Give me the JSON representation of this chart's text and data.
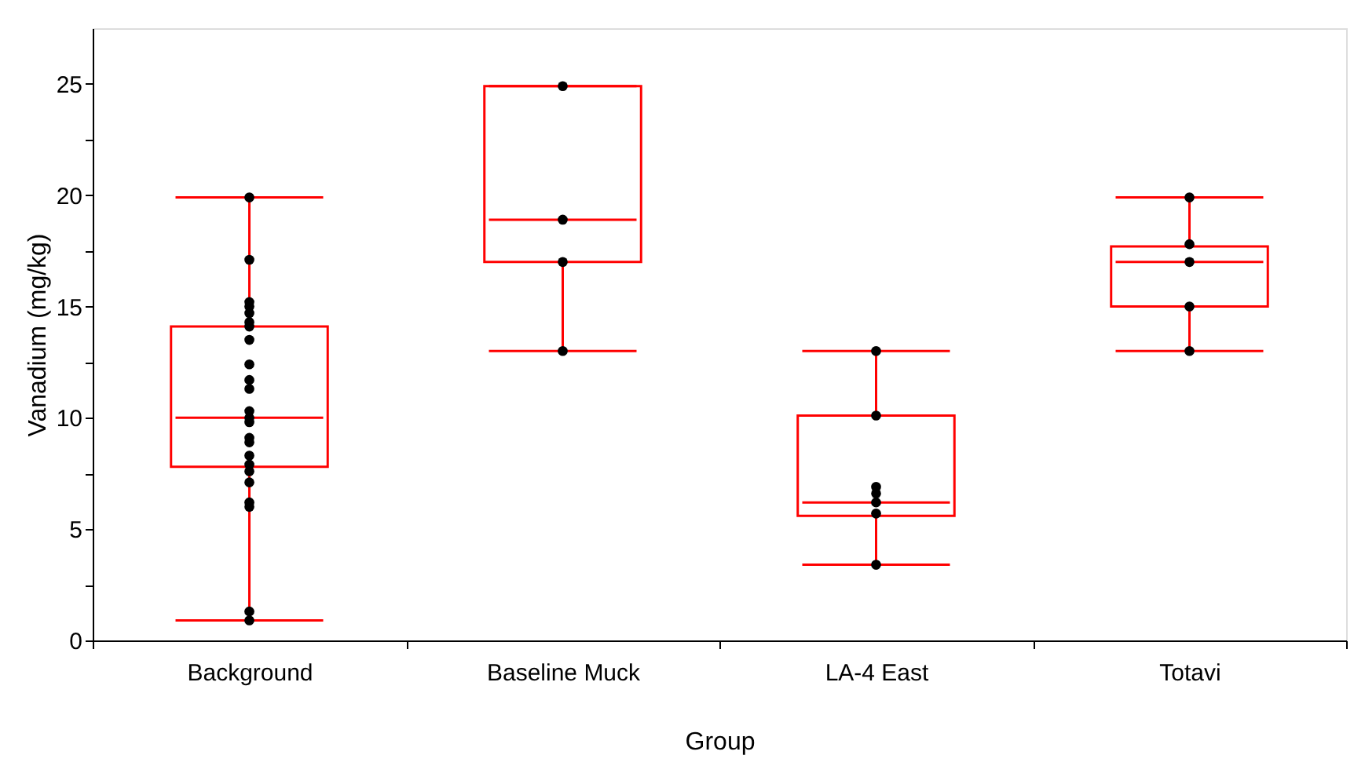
{
  "chart_data": {
    "type": "box",
    "xlabel": "Group",
    "ylabel": "Vanadium (mg/kg)",
    "categories": [
      "Background",
      "Baseline Muck",
      "LA-4 East",
      "Totavi"
    ],
    "ylim": [
      0,
      27.5
    ],
    "yticks": [
      0,
      {
        "value": 2.5,
        "label": null
      },
      5,
      {
        "value": 7.5,
        "label": null
      },
      10,
      {
        "value": 12.5,
        "label": null
      },
      15,
      {
        "value": 17.5,
        "label": null
      },
      20,
      {
        "value": 22.5,
        "label": null
      },
      25
    ],
    "color": "#ff0000",
    "boxes": [
      {
        "low": 0.9,
        "q1": 7.8,
        "median": 10,
        "q3": 14.1,
        "high": 19.9
      },
      {
        "low": 13,
        "q1": 17,
        "median": 18.9,
        "q3": 24.9,
        "high": 24.9
      },
      {
        "low": 3.4,
        "q1": 5.6,
        "median": 6.2,
        "q3": 10.1,
        "high": 13
      },
      {
        "low": 13,
        "q1": 15,
        "median": 17,
        "q3": 17.7,
        "high": 19.9
      }
    ],
    "series": [
      {
        "type": "scatter",
        "color": "#000000",
        "marker": "circle",
        "x": [
          "Background",
          "Background",
          "Background",
          "Background",
          "Background",
          "Background",
          "Background",
          "Background",
          "Background",
          "Background",
          "Background",
          "Background",
          "Background",
          "Background",
          "Background",
          "Background",
          "Background",
          "Background",
          "Background",
          "Background",
          "Background",
          "Background",
          "Background",
          "Background",
          "Baseline Muck",
          "Baseline Muck",
          "Baseline Muck",
          "Baseline Muck",
          "LA-4 East",
          "LA-4 East",
          "LA-4 East",
          "LA-4 East",
          "LA-4 East",
          "LA-4 East",
          "LA-4 East",
          "Totavi",
          "Totavi",
          "Totavi",
          "Totavi",
          "Totavi"
        ],
        "values": [
          19.9,
          17.1,
          15.2,
          15,
          14.7,
          14.3,
          14.1,
          13.5,
          12.4,
          11.7,
          11.3,
          10.3,
          10,
          9.8,
          9.1,
          8.9,
          8.3,
          7.9,
          7.6,
          7.1,
          6.2,
          6,
          1.3,
          0.9,
          24.9,
          18.9,
          17,
          13,
          13,
          10.1,
          6.9,
          6.6,
          6.2,
          5.7,
          3.4,
          19.9,
          17.8,
          17,
          15,
          13
        ]
      }
    ]
  }
}
